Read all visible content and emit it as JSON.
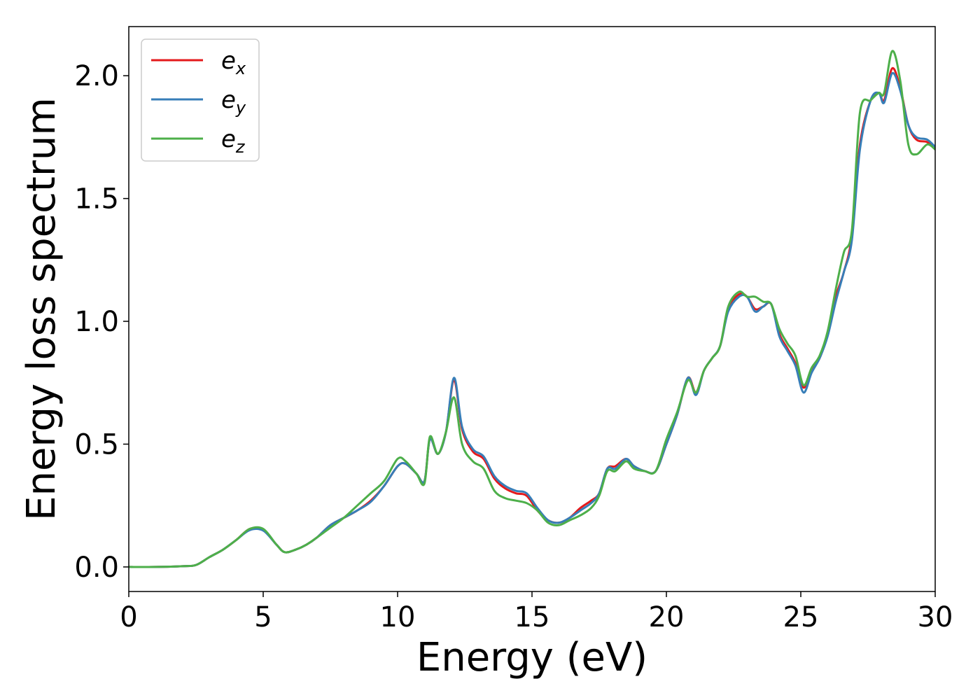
{
  "chart_data": {
    "type": "line",
    "title": "",
    "xlabel": "Energy (eV)",
    "ylabel": "Energy loss spectrum",
    "xlim": [
      0,
      30
    ],
    "ylim": [
      -0.1,
      2.2
    ],
    "xticks": [
      "0",
      "5",
      "10",
      "15",
      "20",
      "25",
      "30"
    ],
    "yticks": [
      "0.0",
      "0.5",
      "1.0",
      "1.5",
      "2.0"
    ],
    "grid": false,
    "legend_position": "top-left",
    "series": [
      {
        "name": "e_x",
        "label_main": "e",
        "label_sub": "x",
        "color": "#e41a1c",
        "x": [
          0,
          1,
          2,
          2.5,
          3,
          3.5,
          4,
          4.5,
          5,
          5.5,
          5.8,
          6.2,
          6.6,
          7,
          7.5,
          8,
          8.5,
          9,
          9.5,
          10,
          10.3,
          10.7,
          11,
          11.2,
          11.5,
          11.8,
          12.1,
          12.4,
          12.8,
          13.2,
          13.6,
          14,
          14.4,
          14.8,
          15.2,
          15.6,
          16,
          16.4,
          16.8,
          17.2,
          17.5,
          17.8,
          18.1,
          18.5,
          18.8,
          19.2,
          19.6,
          20,
          20.4,
          20.8,
          21.1,
          21.4,
          21.7,
          22,
          22.3,
          22.7,
          23,
          23.3,
          23.6,
          23.9,
          24.2,
          24.5,
          24.8,
          25.1,
          25.4,
          25.7,
          26,
          26.3,
          26.6,
          26.9,
          27.2,
          27.6,
          27.9,
          28.1,
          28.4,
          28.7,
          29,
          29.3,
          29.7,
          30
        ],
        "values": [
          0,
          0,
          0.003,
          0.008,
          0.04,
          0.07,
          0.11,
          0.155,
          0.15,
          0.09,
          0.06,
          0.07,
          0.09,
          0.12,
          0.17,
          0.2,
          0.23,
          0.27,
          0.33,
          0.41,
          0.42,
          0.38,
          0.35,
          0.52,
          0.46,
          0.55,
          0.76,
          0.56,
          0.47,
          0.44,
          0.36,
          0.32,
          0.3,
          0.29,
          0.23,
          0.19,
          0.18,
          0.2,
          0.24,
          0.27,
          0.3,
          0.4,
          0.41,
          0.44,
          0.41,
          0.39,
          0.39,
          0.5,
          0.62,
          0.77,
          0.71,
          0.8,
          0.85,
          0.9,
          1.05,
          1.11,
          1.1,
          1.05,
          1.06,
          1.07,
          0.95,
          0.89,
          0.83,
          0.73,
          0.8,
          0.85,
          0.95,
          1.1,
          1.2,
          1.35,
          1.72,
          1.9,
          1.93,
          1.9,
          2.03,
          1.95,
          1.8,
          1.74,
          1.73,
          1.7
        ]
      },
      {
        "name": "e_y",
        "label_main": "e",
        "label_sub": "y",
        "color": "#377eb8",
        "x": [
          0,
          1,
          2,
          2.5,
          3,
          3.5,
          4,
          4.5,
          5,
          5.5,
          5.8,
          6.2,
          6.6,
          7,
          7.5,
          8,
          8.5,
          9,
          9.5,
          10,
          10.3,
          10.7,
          11,
          11.2,
          11.5,
          11.8,
          12.1,
          12.4,
          12.8,
          13.2,
          13.6,
          14,
          14.4,
          14.8,
          15.2,
          15.6,
          16,
          16.4,
          16.8,
          17.2,
          17.5,
          17.8,
          18.1,
          18.5,
          18.8,
          19.2,
          19.6,
          20,
          20.4,
          20.8,
          21.1,
          21.4,
          21.7,
          22,
          22.3,
          22.7,
          23,
          23.3,
          23.6,
          23.9,
          24.2,
          24.5,
          24.8,
          25.1,
          25.4,
          25.7,
          26,
          26.3,
          26.6,
          26.9,
          27.2,
          27.6,
          27.9,
          28.1,
          28.4,
          28.7,
          29,
          29.3,
          29.7,
          30
        ],
        "values": [
          0,
          0,
          0.003,
          0.008,
          0.04,
          0.07,
          0.11,
          0.15,
          0.148,
          0.09,
          0.06,
          0.07,
          0.09,
          0.12,
          0.17,
          0.2,
          0.23,
          0.265,
          0.33,
          0.41,
          0.42,
          0.38,
          0.35,
          0.52,
          0.46,
          0.55,
          0.77,
          0.57,
          0.48,
          0.45,
          0.37,
          0.33,
          0.31,
          0.3,
          0.24,
          0.19,
          0.18,
          0.2,
          0.23,
          0.26,
          0.3,
          0.4,
          0.4,
          0.44,
          0.41,
          0.39,
          0.39,
          0.5,
          0.62,
          0.77,
          0.7,
          0.8,
          0.85,
          0.9,
          1.04,
          1.1,
          1.1,
          1.04,
          1.06,
          1.07,
          0.94,
          0.88,
          0.82,
          0.71,
          0.79,
          0.85,
          0.94,
          1.08,
          1.2,
          1.33,
          1.7,
          1.9,
          1.93,
          1.89,
          2.01,
          1.94,
          1.8,
          1.75,
          1.74,
          1.71
        ]
      },
      {
        "name": "e_z",
        "label_main": "e",
        "label_sub": "z",
        "color": "#4daf4a",
        "x": [
          0,
          1,
          2,
          2.5,
          3,
          3.5,
          4,
          4.5,
          5,
          5.5,
          5.8,
          6.2,
          6.6,
          7,
          7.5,
          8,
          8.5,
          9,
          9.5,
          10,
          10.3,
          10.7,
          11,
          11.2,
          11.5,
          11.8,
          12.1,
          12.4,
          12.8,
          13.2,
          13.6,
          14,
          14.4,
          14.8,
          15.2,
          15.6,
          16,
          16.4,
          16.8,
          17.2,
          17.5,
          17.8,
          18.1,
          18.5,
          18.8,
          19.2,
          19.6,
          20,
          20.4,
          20.8,
          21.1,
          21.4,
          21.7,
          22,
          22.3,
          22.7,
          23,
          23.3,
          23.6,
          23.9,
          24.2,
          24.5,
          24.8,
          25.1,
          25.4,
          25.7,
          26,
          26.3,
          26.6,
          26.9,
          27.2,
          27.6,
          27.9,
          28.1,
          28.4,
          28.7,
          29,
          29.3,
          29.7,
          30
        ],
        "values": [
          0,
          0,
          0.003,
          0.008,
          0.04,
          0.07,
          0.11,
          0.155,
          0.155,
          0.09,
          0.06,
          0.07,
          0.09,
          0.12,
          0.16,
          0.2,
          0.25,
          0.3,
          0.35,
          0.44,
          0.43,
          0.38,
          0.34,
          0.53,
          0.46,
          0.55,
          0.69,
          0.5,
          0.43,
          0.4,
          0.31,
          0.28,
          0.27,
          0.26,
          0.23,
          0.18,
          0.17,
          0.19,
          0.21,
          0.24,
          0.29,
          0.39,
          0.39,
          0.43,
          0.4,
          0.39,
          0.39,
          0.52,
          0.63,
          0.76,
          0.71,
          0.8,
          0.85,
          0.9,
          1.06,
          1.12,
          1.1,
          1.1,
          1.08,
          1.07,
          0.97,
          0.91,
          0.86,
          0.74,
          0.81,
          0.86,
          0.96,
          1.13,
          1.28,
          1.37,
          1.85,
          1.9,
          1.93,
          1.93,
          2.1,
          1.98,
          1.72,
          1.68,
          1.72,
          1.7
        ]
      }
    ]
  }
}
